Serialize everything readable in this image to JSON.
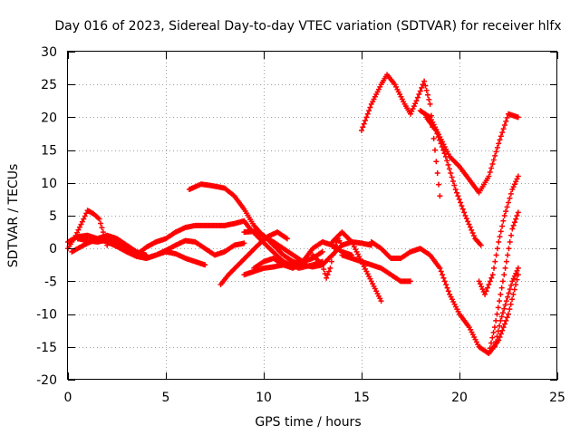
{
  "chart_data": {
    "type": "scatter",
    "title": "Day 016 of 2023, Sidereal Day-to-day VTEC variation (SDTVAR) for receiver hlfx",
    "xlabel": "GPS time / hours",
    "ylabel": "SDTVAR / TECUs",
    "xlim": [
      0,
      25
    ],
    "ylim": [
      -20,
      30
    ],
    "xticks": [
      0,
      5,
      10,
      15,
      20,
      25
    ],
    "yticks": [
      -20,
      -15,
      -10,
      -5,
      0,
      5,
      10,
      15,
      20,
      25,
      30
    ],
    "grid": true,
    "marker": "+",
    "color": "#ff0000",
    "series": [
      {
        "x": [
          0.0,
          0.5,
          1.0,
          1.5,
          2.0,
          2.5,
          3.0,
          3.5,
          4.0,
          4.5,
          5.0,
          5.5,
          6.0,
          6.5,
          7.0
        ],
        "y": [
          1.0,
          1.8,
          2.0,
          1.5,
          1.0,
          0.3,
          -0.5,
          -1.2,
          -1.5,
          -1.0,
          -0.5,
          -0.8,
          -1.5,
          -2.0,
          -2.5
        ]
      },
      {
        "x": [
          0.0,
          0.4,
          0.8,
          1.0,
          1.3,
          1.6,
          1.8,
          2.0
        ],
        "y": [
          0.0,
          2.0,
          4.5,
          5.8,
          5.3,
          4.5,
          2.5,
          0.5
        ]
      },
      {
        "x": [
          0.2,
          0.8,
          1.5,
          2.0,
          2.5,
          3.0,
          3.5,
          4.0
        ],
        "y": [
          -0.5,
          0.5,
          1.5,
          2.0,
          1.5,
          0.5,
          -0.5,
          -1.0
        ]
      },
      {
        "x": [
          0.5,
          1.0,
          1.5,
          2.0,
          2.5,
          3.0,
          3.5,
          4.0,
          4.5,
          5.0,
          5.5,
          6.0,
          6.5,
          7.0,
          7.5,
          8.0,
          8.5,
          9.0
        ],
        "y": [
          1.5,
          1.2,
          1.0,
          1.3,
          0.8,
          0.0,
          -1.0,
          -1.5,
          -1.0,
          -0.3,
          0.5,
          1.2,
          1.0,
          0.0,
          -1.0,
          -0.5,
          0.5,
          0.8
        ]
      },
      {
        "x": [
          3.5,
          4.0,
          4.5,
          5.0,
          5.5,
          6.0,
          6.5,
          7.0,
          7.5,
          8.0,
          8.5,
          9.0,
          9.3,
          9.8,
          10.3,
          11.0,
          11.8,
          12.5,
          13.0
        ],
        "y": [
          -1.0,
          0.2,
          1.0,
          1.5,
          2.5,
          3.2,
          3.5,
          3.5,
          3.5,
          3.5,
          3.8,
          4.2,
          3.0,
          1.5,
          0.0,
          -2.0,
          -3.0,
          -2.5,
          -2.0
        ]
      },
      {
        "x": [
          6.2,
          6.8,
          7.3,
          8.0,
          8.5,
          9.0,
          9.5,
          10.0,
          10.5,
          11.0,
          11.5,
          12.0
        ],
        "y": [
          9.0,
          9.8,
          9.6,
          9.2,
          8.0,
          6.0,
          3.5,
          1.8,
          1.0,
          0.0,
          -1.0,
          -2.0
        ]
      },
      {
        "x": [
          7.8,
          8.2,
          8.7,
          9.2,
          9.7,
          10.2,
          10.7,
          11.2
        ],
        "y": [
          -5.5,
          -4.0,
          -2.5,
          -1.0,
          0.5,
          1.8,
          2.5,
          1.5
        ]
      },
      {
        "x": [
          9.0,
          9.5,
          10.0,
          10.5,
          11.0,
          11.5,
          12.0,
          12.5,
          13.0,
          13.5,
          14.0,
          14.5,
          15.0,
          15.5
        ],
        "y": [
          2.5,
          2.6,
          2.0,
          0.5,
          -1.0,
          -2.0,
          -2.5,
          -2.8,
          -2.5,
          -1.0,
          0.5,
          1.0,
          0.8,
          0.5
        ]
      },
      {
        "x": [
          9.0,
          9.5,
          10.0,
          10.5,
          11.0,
          11.5,
          12.0,
          12.5,
          13.0
        ],
        "y": [
          -4.0,
          -3.5,
          -3.0,
          -2.8,
          -2.5,
          -2.3,
          -2.0,
          -1.5,
          -0.5
        ]
      },
      {
        "x": [
          9.5,
          10.0,
          10.5,
          11.0,
          11.5,
          12.0,
          12.5,
          13.0,
          13.5,
          14.0,
          14.5
        ],
        "y": [
          -3.0,
          -2.0,
          -1.5,
          -2.5,
          -3.0,
          -2.0,
          0.0,
          1.0,
          0.5,
          -0.5,
          -1.0
        ]
      },
      {
        "x": [
          12.5,
          13.0,
          13.2,
          13.4,
          13.6,
          13.8,
          14.0
        ],
        "y": [
          -1.0,
          -2.5,
          -4.5,
          -3.0,
          0.0,
          1.5,
          0.5
        ]
      },
      {
        "x": [
          13.5,
          14.0,
          14.5,
          15.0,
          15.5,
          16.0
        ],
        "y": [
          1.0,
          2.5,
          1.0,
          -2.0,
          -5.0,
          -8.0
        ]
      },
      {
        "x": [
          14.0,
          14.5,
          15.0,
          15.5,
          16.0,
          16.5,
          17.0,
          17.5
        ],
        "y": [
          -1.0,
          -1.5,
          -2.0,
          -2.5,
          -3.0,
          -4.0,
          -5.0,
          -5.0
        ]
      },
      {
        "x": [
          15.5,
          16.0,
          16.5,
          17.0,
          17.5,
          18.0,
          18.5,
          19.0,
          19.5,
          20.0,
          20.5,
          21.0,
          21.5,
          22.0,
          22.5,
          23.0
        ],
        "y": [
          1.0,
          0.0,
          -1.5,
          -1.5,
          -0.5,
          0.0,
          -1.0,
          -3.0,
          -7.0,
          -10.0,
          -12.0,
          -15.0,
          -16.0,
          -14.0,
          -10.0,
          -4.0
        ]
      },
      {
        "x": [
          15.0,
          15.5,
          16.0,
          16.3,
          16.7,
          17.2,
          17.5,
          17.8,
          18.2,
          18.5,
          19.0
        ],
        "y": [
          18.0,
          22.0,
          25.0,
          26.5,
          25.0,
          22.0,
          20.5,
          22.5,
          25.5,
          22.0,
          8.0
        ]
      },
      {
        "x": [
          18.0,
          18.5,
          19.0,
          19.5,
          20.0,
          20.5,
          21.0,
          21.5,
          22.0,
          22.5,
          23.0
        ],
        "y": [
          21.0,
          20.0,
          17.0,
          14.0,
          12.5,
          10.5,
          8.5,
          11.0,
          16.0,
          20.5,
          20.0
        ]
      },
      {
        "x": [
          18.3,
          18.8,
          19.3,
          19.8,
          20.3,
          20.8,
          21.1
        ],
        "y": [
          20.0,
          18.0,
          14.0,
          9.0,
          5.0,
          1.5,
          0.5
        ]
      },
      {
        "x": [
          21.0,
          21.3,
          21.7,
          22.0,
          22.3,
          22.7,
          23.0
        ],
        "y": [
          -5.0,
          -7.0,
          -4.0,
          1.0,
          5.0,
          9.0,
          11.0
        ]
      },
      {
        "x": [
          21.5,
          21.8,
          22.1,
          22.4,
          22.7,
          23.0
        ],
        "y": [
          -16.0,
          -12.0,
          -7.0,
          -2.0,
          3.0,
          5.5
        ]
      },
      {
        "x": [
          21.8,
          22.1,
          22.4,
          22.7,
          23.0
        ],
        "y": [
          -15.0,
          -11.0,
          -8.0,
          -5.0,
          -3.0
        ]
      }
    ]
  }
}
